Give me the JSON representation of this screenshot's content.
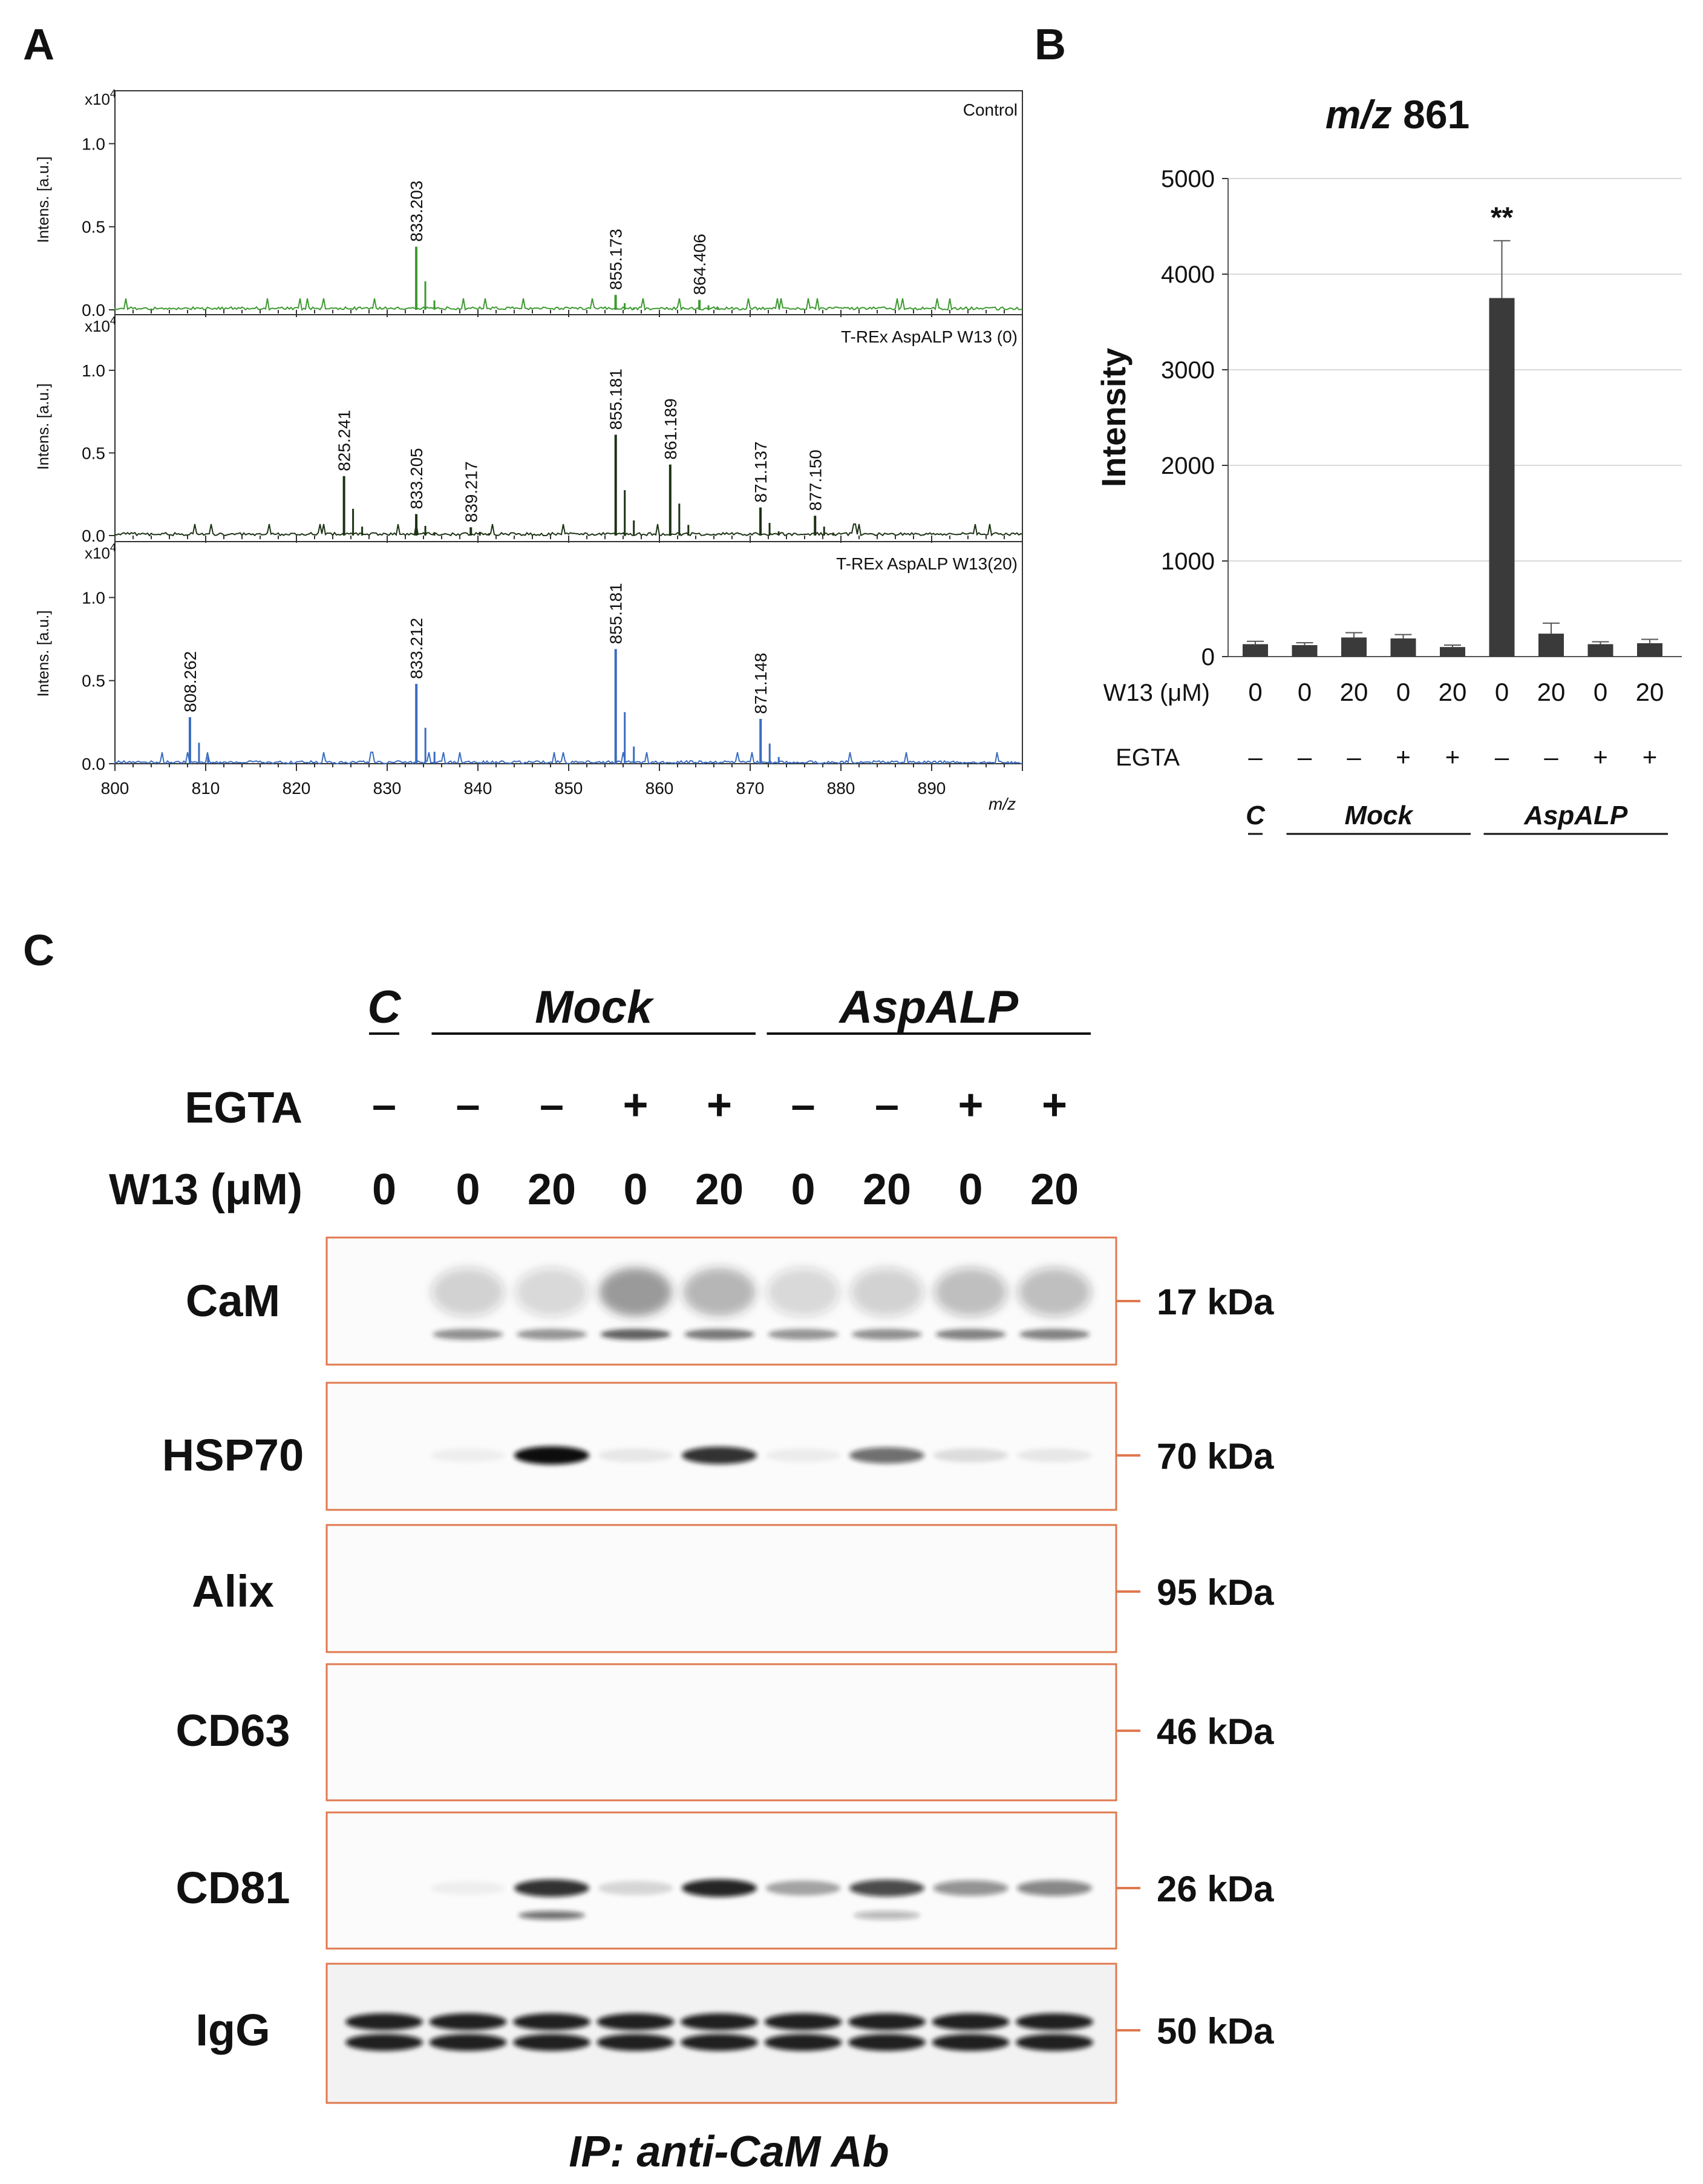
{
  "panel_labels": [
    "A",
    "B",
    "C"
  ],
  "panelA": {
    "y_axis_label": "Intens. [a.u.]",
    "y_multiplier": "x10",
    "y_multiplier_exp": "4",
    "x_axis_label": "m/z",
    "colors": {
      "Control": "#3d9a30",
      "T-REx AspALP W13 (0)": "#1c3214",
      "T-REx AspALP W13(20)": "#3a6cc0"
    },
    "chart_data": [
      {
        "type": "line",
        "title": "Control",
        "xlim": [
          800,
          900
        ],
        "ylim": [
          0,
          1.3
        ],
        "x_ticks": [
          800,
          810,
          820,
          830,
          840,
          850,
          860,
          870,
          880,
          890
        ],
        "y_ticks": [
          "0.0",
          "0.5",
          "1.0"
        ],
        "peaks": [
          {
            "x": 833.203,
            "y": 0.38,
            "label": "833.203"
          },
          {
            "x": 855.173,
            "y": 0.09,
            "label": "855.173"
          },
          {
            "x": 864.406,
            "y": 0.06,
            "label": "864.406"
          }
        ]
      },
      {
        "type": "line",
        "title": "T-REx AspALP W13 (0)",
        "xlim": [
          800,
          900
        ],
        "ylim": [
          0,
          1.3
        ],
        "x_ticks": [
          800,
          810,
          820,
          830,
          840,
          850,
          860,
          870,
          880,
          890
        ],
        "y_ticks": [
          "0.0",
          "0.5",
          "1.0"
        ],
        "peaks": [
          {
            "x": 825.241,
            "y": 0.36,
            "label": "825.241"
          },
          {
            "x": 833.205,
            "y": 0.13,
            "label": "833.205"
          },
          {
            "x": 839.217,
            "y": 0.05,
            "label": "839.217"
          },
          {
            "x": 855.181,
            "y": 0.61,
            "label": "855.181"
          },
          {
            "x": 861.189,
            "y": 0.43,
            "label": "861.189"
          },
          {
            "x": 871.137,
            "y": 0.17,
            "label": "871.137"
          },
          {
            "x": 877.15,
            "y": 0.12,
            "label": "877.150"
          }
        ]
      },
      {
        "type": "line",
        "title": "T-REx AspALP W13(20)",
        "xlim": [
          800,
          900
        ],
        "ylim": [
          0,
          1.3
        ],
        "x_ticks": [
          800,
          810,
          820,
          830,
          840,
          850,
          860,
          870,
          880,
          890
        ],
        "y_ticks": [
          "0.0",
          "0.5",
          "1.0"
        ],
        "peaks": [
          {
            "x": 808.262,
            "y": 0.28,
            "label": "808.262"
          },
          {
            "x": 833.212,
            "y": 0.48,
            "label": "833.212"
          },
          {
            "x": 855.181,
            "y": 0.69,
            "label": "855.181"
          },
          {
            "x": 871.148,
            "y": 0.27,
            "label": "871.148"
          }
        ]
      }
    ]
  },
  "panelB": {
    "title_italic": "m/z",
    "title_rest": " 861",
    "chart_data": {
      "type": "bar",
      "ylabel": "Intensity",
      "ylim": [
        0,
        5000
      ],
      "y_ticks": [
        0,
        1000,
        2000,
        3000,
        4000,
        5000
      ],
      "values": [
        130,
        120,
        200,
        190,
        100,
        3750,
        240,
        130,
        140
      ],
      "errors": [
        30,
        25,
        50,
        40,
        20,
        600,
        110,
        25,
        40
      ],
      "significance": [
        {
          "index": 5,
          "label": "**"
        }
      ],
      "rows": [
        {
          "label": "W13 (μM)",
          "values": [
            "0",
            "0",
            "20",
            "0",
            "20",
            "0",
            "20",
            "0",
            "20"
          ]
        },
        {
          "label": "EGTA",
          "values": [
            "–",
            "–",
            "–",
            "+",
            "+",
            "–",
            "–",
            "+",
            "+"
          ]
        }
      ],
      "groups": [
        {
          "label": "C",
          "from": 0,
          "to": 0
        },
        {
          "label": "Mock",
          "from": 1,
          "to": 4
        },
        {
          "label": "AspALP",
          "from": 5,
          "to": 8
        }
      ]
    }
  },
  "panelC": {
    "groups": [
      {
        "label": "C",
        "from": 0,
        "to": 0
      },
      {
        "label": "Mock",
        "from": 1,
        "to": 4
      },
      {
        "label": "AspALP",
        "from": 5,
        "to": 8
      }
    ],
    "egta_label": "EGTA",
    "egta": [
      "–",
      "–",
      "–",
      "+",
      "+",
      "–",
      "–",
      "+",
      "+"
    ],
    "w13_label": "W13 (μM)",
    "w13": [
      "0",
      "0",
      "20",
      "0",
      "20",
      "0",
      "20",
      "0",
      "20"
    ],
    "blots": [
      {
        "name": "CaM",
        "size": "17 kDa"
      },
      {
        "name": "HSP70",
        "size": "70 kDa"
      },
      {
        "name": "Alix",
        "size": "95 kDa"
      },
      {
        "name": "CD63",
        "size": "46 kDa"
      },
      {
        "name": "CD81",
        "size": "26 kDa"
      },
      {
        "name": "IgG",
        "size": "50 kDa"
      }
    ],
    "band_intensity": {
      "HSP70": [
        0,
        0.05,
        1.0,
        0.08,
        0.85,
        0.06,
        0.6,
        0.12,
        0.08
      ],
      "CD81": [
        0,
        0.05,
        0.85,
        0.15,
        0.9,
        0.35,
        0.75,
        0.45,
        0.5
      ]
    },
    "footer": "IP: anti-CaM Ab"
  }
}
